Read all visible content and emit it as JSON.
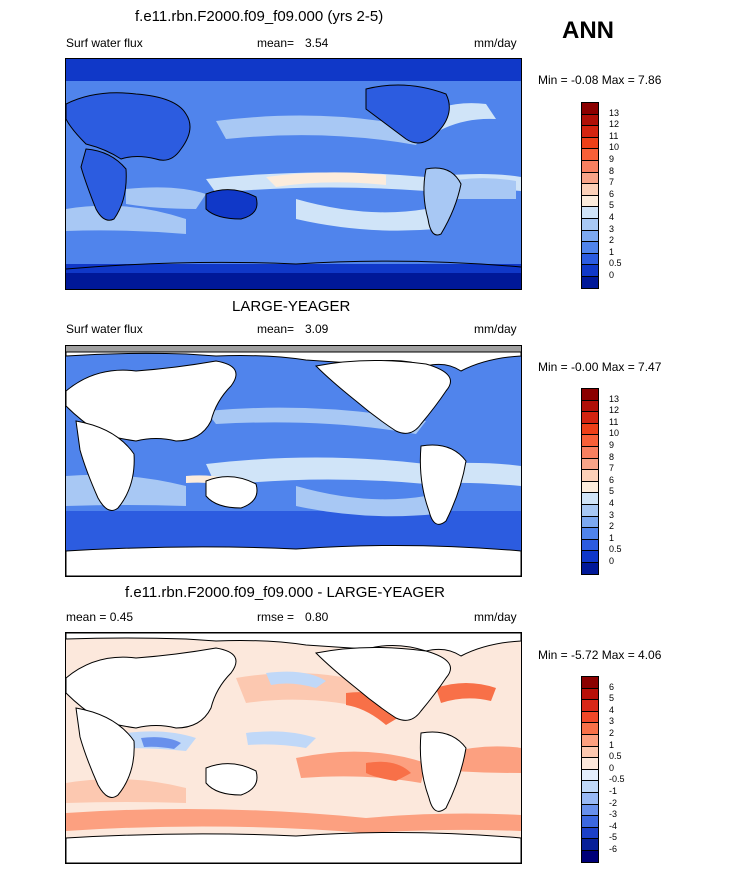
{
  "season": "ANN",
  "panels": [
    {
      "title": "f.e11.rbn.F2000.f09_f09.000 (yrs 2-5)",
      "left_label": "Surf water flux",
      "mean_label": "mean=",
      "mean_value": "3.54",
      "units": "mm/day",
      "minmax_text": "Min =  -0.08 Max =   7.86",
      "land_masked": false,
      "colorbar": {
        "levels": [
          "13",
          "12",
          "11",
          "10",
          "9",
          "8",
          "7",
          "6",
          "5",
          "4",
          "3",
          "2",
          "1",
          "0.5",
          "0"
        ],
        "colors": [
          "#8b0000",
          "#b01008",
          "#d42410",
          "#ee4018",
          "#f86038",
          "#f88060",
          "#f8a488",
          "#fcd0b8",
          "#fcecdc",
          "#d0e4f8",
          "#a8c8f4",
          "#7ca8f0",
          "#5084ec",
          "#2c5ce0",
          "#1038c8",
          "#001898"
        ]
      }
    },
    {
      "title": "LARGE-YEAGER",
      "left_label": "Surf water flux",
      "mean_label": "mean=",
      "mean_value": "3.09",
      "units": "mm/day",
      "minmax_text": "Min =  -0.00 Max =   7.47",
      "land_masked": true,
      "colorbar": {
        "levels": [
          "13",
          "12",
          "11",
          "10",
          "9",
          "8",
          "7",
          "6",
          "5",
          "4",
          "3",
          "2",
          "1",
          "0.5",
          "0"
        ],
        "colors": [
          "#8b0000",
          "#b01008",
          "#d42410",
          "#ee4018",
          "#f86038",
          "#f88060",
          "#f8a488",
          "#fcd0b8",
          "#fcecdc",
          "#d0e4f8",
          "#a8c8f4",
          "#7ca8f0",
          "#5084ec",
          "#2c5ce0",
          "#1038c8",
          "#001898"
        ]
      }
    },
    {
      "title": "f.e11.rbn.F2000.f09_f09.000 - LARGE-YEAGER",
      "left_label": "mean =   0.45",
      "mean_label": "rmse =",
      "mean_value": "0.80",
      "units": "mm/day",
      "minmax_text": "Min =  -5.72 Max =   4.06",
      "land_masked": true,
      "colorbar": {
        "levels": [
          "6",
          "5",
          "4",
          "3",
          "2",
          "1",
          "0.5",
          "0",
          "-0.5",
          "-1",
          "-2",
          "-3",
          "-4",
          "-5",
          "-6"
        ],
        "colors": [
          "#8b0000",
          "#b81008",
          "#d82818",
          "#f04828",
          "#f87048",
          "#fca080",
          "#fcc8b0",
          "#fce8dc",
          "#e4eefc",
          "#c0d8f8",
          "#98b8f4",
          "#6890ec",
          "#3c68e0",
          "#1c40c8",
          "#082098",
          "#000078"
        ]
      }
    }
  ]
}
